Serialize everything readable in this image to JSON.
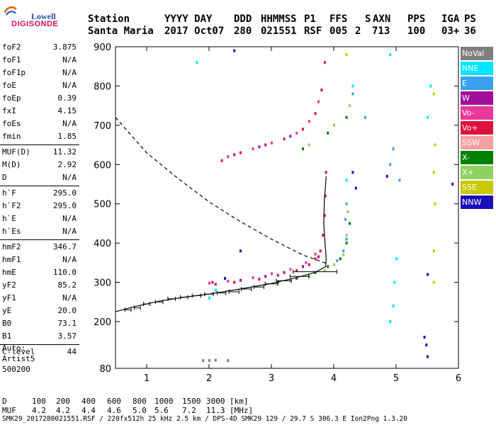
{
  "logo": {
    "line1": "Lowell",
    "line2": "DIGISONDE"
  },
  "header": {
    "labels": [
      "Station",
      "YYYY DAY",
      "DDD",
      "HHMMSS",
      "P1",
      "FFS",
      "S",
      "AXN",
      "PPS",
      "IGA",
      "PS"
    ],
    "values": [
      "Santa Maria",
      "2017 Oct07",
      "280",
      "021551",
      "RSF",
      "005",
      "2",
      "713",
      "100",
      "03+",
      "36"
    ]
  },
  "params": [
    {
      "k": "foF2",
      "v": "3.875"
    },
    {
      "k": "foF1",
      "v": "N/A"
    },
    {
      "k": "foF1p",
      "v": "N/A"
    },
    {
      "k": "foE",
      "v": "N/A"
    },
    {
      "k": "foEp",
      "v": "0.39"
    },
    {
      "k": "fxI",
      "v": "4.15"
    },
    {
      "k": "foEs",
      "v": "N/A"
    },
    {
      "k": "fmin",
      "v": "1.85"
    },
    {
      "k": "MUF(D)",
      "v": "11.32"
    },
    {
      "k": "M(D)",
      "v": "2.92"
    },
    {
      "k": "D",
      "v": "N/A"
    },
    {
      "k": "h`F",
      "v": "295.0"
    },
    {
      "k": "h`F2",
      "v": "295.0"
    },
    {
      "k": "h`E",
      "v": "N/A"
    },
    {
      "k": "h`Es",
      "v": "N/A"
    },
    {
      "k": "hmF2",
      "v": "346.7"
    },
    {
      "k": "hmF1",
      "v": "N/A"
    },
    {
      "k": "hmE",
      "v": "110.0"
    },
    {
      "k": "yF2",
      "v": "85.2"
    },
    {
      "k": "yF1",
      "v": "N/A"
    },
    {
      "k": "yE",
      "v": "20.0"
    },
    {
      "k": "B0",
      "v": "73.1"
    },
    {
      "k": "B1",
      "v": "3.57"
    },
    {
      "k": "C-level",
      "v": "44"
    }
  ],
  "auto": {
    "line1": "Auto:",
    "line2": "Artist5",
    "line3": "500200"
  },
  "legend": [
    {
      "label": "NoVal",
      "color": "#7f7f7f"
    },
    {
      "label": "NNE",
      "color": "#00e5ff"
    },
    {
      "label": "E",
      "color": "#3aa0f0"
    },
    {
      "label": "W",
      "color": "#a0109a"
    },
    {
      "label": "Vo-",
      "color": "#e8389a"
    },
    {
      "label": "Vo+",
      "color": "#e0103c"
    },
    {
      "label": "SSW",
      "color": "#f5a0a0"
    },
    {
      "label": "X-",
      "color": "#008000"
    },
    {
      "label": "X+",
      "color": "#8fd060"
    },
    {
      "label": "SSE",
      "color": "#c8c800"
    },
    {
      "label": "NNW",
      "color": "#1a10b8"
    }
  ],
  "bottom": {
    "d_label": "D",
    "d_values": [
      "100",
      "200",
      "400",
      "600",
      "800",
      "1000",
      "1500",
      "3000",
      "[km]"
    ],
    "muf_label": "MUF",
    "muf_values": [
      "4.2",
      "4.2",
      "4.4",
      "4.6",
      "5.0",
      "5.6",
      "7.2",
      "11.3",
      "[MHz]"
    ]
  },
  "footer": "SMK29_2017280021551.RSF / 220fx512h 25 kHz 2.5 km / DPS-4D SMK29 129 / 29.7 S 306.3 E Ion2Png 1.3.20",
  "chart_data": {
    "type": "scatter",
    "title": "",
    "xlabel": "",
    "ylabel": "",
    "xlim": [
      0.5,
      6.0
    ],
    "ylim": [
      80,
      900
    ],
    "xticks": [
      1,
      2,
      3,
      4,
      5,
      6
    ],
    "yticks": [
      80,
      200,
      300,
      400,
      500,
      600,
      700,
      800,
      900
    ],
    "ytick_labels": [
      "80",
      "200",
      "300",
      "400",
      "500",
      "600",
      "700",
      "800",
      "900"
    ],
    "series": [
      {
        "name": "Vo+",
        "color": "#e0103c",
        "points": [
          [
            2.1,
            295
          ],
          [
            2.4,
            300
          ],
          [
            2.8,
            308
          ],
          [
            3.1,
            318
          ],
          [
            3.4,
            330
          ],
          [
            3.6,
            345
          ],
          [
            3.7,
            360
          ],
          [
            3.78,
            380
          ],
          [
            3.82,
            420
          ],
          [
            3.85,
            470
          ],
          [
            3.86,
            520
          ],
          [
            3.87,
            580
          ],
          [
            2.2,
            610
          ],
          [
            2.5,
            630
          ],
          [
            2.9,
            650
          ],
          [
            3.2,
            665
          ],
          [
            3.5,
            690
          ],
          [
            3.7,
            730
          ],
          [
            3.8,
            790
          ],
          [
            3.85,
            860
          ]
        ]
      },
      {
        "name": "Vo-",
        "color": "#e8389a",
        "points": [
          [
            2.0,
            298
          ],
          [
            2.3,
            303
          ],
          [
            2.7,
            312
          ],
          [
            3.0,
            322
          ],
          [
            3.3,
            333
          ],
          [
            3.55,
            350
          ],
          [
            3.7,
            372
          ],
          [
            2.3,
            620
          ],
          [
            2.7,
            640
          ],
          [
            3.0,
            655
          ],
          [
            3.4,
            680
          ],
          [
            3.6,
            710
          ],
          [
            3.75,
            760
          ]
        ]
      },
      {
        "name": "W",
        "color": "#a0109a",
        "points": [
          [
            2.05,
            300
          ],
          [
            2.5,
            305
          ],
          [
            2.9,
            315
          ],
          [
            3.2,
            325
          ],
          [
            3.5,
            340
          ],
          [
            3.75,
            365
          ],
          [
            2.4,
            625
          ],
          [
            2.8,
            645
          ],
          [
            3.3,
            672
          ]
        ]
      },
      {
        "name": "X-",
        "color": "#008000",
        "points": [
          [
            3.1,
            300
          ],
          [
            3.4,
            310
          ],
          [
            3.7,
            325
          ],
          [
            3.9,
            340
          ],
          [
            4.1,
            360
          ],
          [
            4.2,
            400
          ],
          [
            4.25,
            450
          ],
          [
            3.5,
            640
          ],
          [
            3.9,
            680
          ],
          [
            4.2,
            720
          ]
        ]
      },
      {
        "name": "X+",
        "color": "#8fd060",
        "points": [
          [
            3.3,
            305
          ],
          [
            3.6,
            315
          ],
          [
            3.85,
            330
          ],
          [
            4.0,
            345
          ],
          [
            4.15,
            370
          ],
          [
            4.2,
            420
          ],
          [
            4.22,
            480
          ],
          [
            3.6,
            650
          ],
          [
            4.0,
            700
          ],
          [
            4.25,
            750
          ]
        ]
      },
      {
        "name": "E",
        "color": "#3aa0f0",
        "points": [
          [
            4.05,
            355
          ],
          [
            4.15,
            380
          ],
          [
            4.2,
            410
          ],
          [
            4.18,
            460
          ],
          [
            4.2,
            500
          ],
          [
            4.3,
            780
          ],
          [
            4.5,
            720
          ],
          [
            4.9,
            600
          ],
          [
            4.95,
            640
          ],
          [
            5.05,
            560
          ]
        ]
      },
      {
        "name": "NNE",
        "color": "#00e5ff",
        "points": [
          [
            2.0,
            260
          ],
          [
            2.1,
            280
          ],
          [
            4.9,
            200
          ],
          [
            4.95,
            240
          ],
          [
            4.97,
            300
          ],
          [
            5.0,
            360
          ],
          [
            5.5,
            720
          ],
          [
            5.55,
            800
          ],
          [
            4.9,
            880
          ],
          [
            1.8,
            860
          ],
          [
            4.3,
            800
          ],
          [
            4.2,
            560
          ]
        ]
      },
      {
        "name": "SSE",
        "color": "#c8c800",
        "points": [
          [
            5.6,
            300
          ],
          [
            5.6,
            380
          ],
          [
            5.62,
            500
          ],
          [
            5.6,
            580
          ],
          [
            5.62,
            650
          ],
          [
            5.6,
            780
          ],
          [
            4.2,
            880
          ]
        ]
      },
      {
        "name": "NNW",
        "color": "#1a10b8",
        "points": [
          [
            2.4,
            890
          ],
          [
            4.3,
            580
          ],
          [
            4.35,
            540
          ],
          [
            4.85,
            570
          ],
          [
            5.45,
            160
          ],
          [
            5.48,
            140
          ],
          [
            5.5,
            110
          ],
          [
            5.5,
            320
          ],
          [
            5.9,
            550
          ],
          [
            2.25,
            310
          ],
          [
            2.5,
            380
          ]
        ]
      },
      {
        "name": "NoVal",
        "color": "#7f7f7f",
        "points": [
          [
            1.9,
            100
          ],
          [
            2.0,
            100
          ],
          [
            2.1,
            101
          ],
          [
            2.3,
            100
          ]
        ]
      }
    ],
    "profile_curve": [
      [
        0.5,
        720
      ],
      [
        1.0,
        630
      ],
      [
        1.5,
        565
      ],
      [
        2.0,
        505
      ],
      [
        2.5,
        455
      ],
      [
        3.0,
        410
      ],
      [
        3.5,
        370
      ],
      [
        3.9,
        347
      ]
    ],
    "trace_curve": [
      [
        0.5,
        225
      ],
      [
        0.8,
        238
      ],
      [
        1.2,
        252
      ],
      [
        1.6,
        262
      ],
      [
        2.0,
        270
      ],
      [
        2.5,
        283
      ],
      [
        3.0,
        297
      ],
      [
        3.4,
        312
      ],
      [
        3.7,
        325
      ],
      [
        3.87,
        340
      ],
      [
        3.88,
        360
      ],
      [
        3.86,
        400
      ],
      [
        3.84,
        450
      ],
      [
        3.85,
        510
      ],
      [
        3.88,
        570
      ]
    ],
    "error_bars": [
      {
        "x": 0.7,
        "y": 230,
        "half": 0.05
      },
      {
        "x": 0.85,
        "y": 235,
        "half": 0.05
      },
      {
        "x": 1.0,
        "y": 245,
        "half": 0.05
      },
      {
        "x": 1.2,
        "y": 250,
        "half": 0.06
      },
      {
        "x": 1.4,
        "y": 258,
        "half": 0.06
      },
      {
        "x": 1.6,
        "y": 262,
        "half": 0.06
      },
      {
        "x": 1.8,
        "y": 266,
        "half": 0.07
      },
      {
        "x": 2.0,
        "y": 270,
        "half": 0.07
      },
      {
        "x": 2.2,
        "y": 273,
        "half": 0.07
      },
      {
        "x": 2.4,
        "y": 276,
        "half": 0.08
      },
      {
        "x": 2.6,
        "y": 283,
        "half": 0.08
      },
      {
        "x": 2.8,
        "y": 288,
        "half": 0.08
      },
      {
        "x": 3.0,
        "y": 296,
        "half": 0.1
      },
      {
        "x": 3.2,
        "y": 304,
        "half": 0.12
      },
      {
        "x": 3.45,
        "y": 315,
        "half": 0.15
      },
      {
        "x": 3.7,
        "y": 327,
        "half": 0.35
      }
    ]
  }
}
